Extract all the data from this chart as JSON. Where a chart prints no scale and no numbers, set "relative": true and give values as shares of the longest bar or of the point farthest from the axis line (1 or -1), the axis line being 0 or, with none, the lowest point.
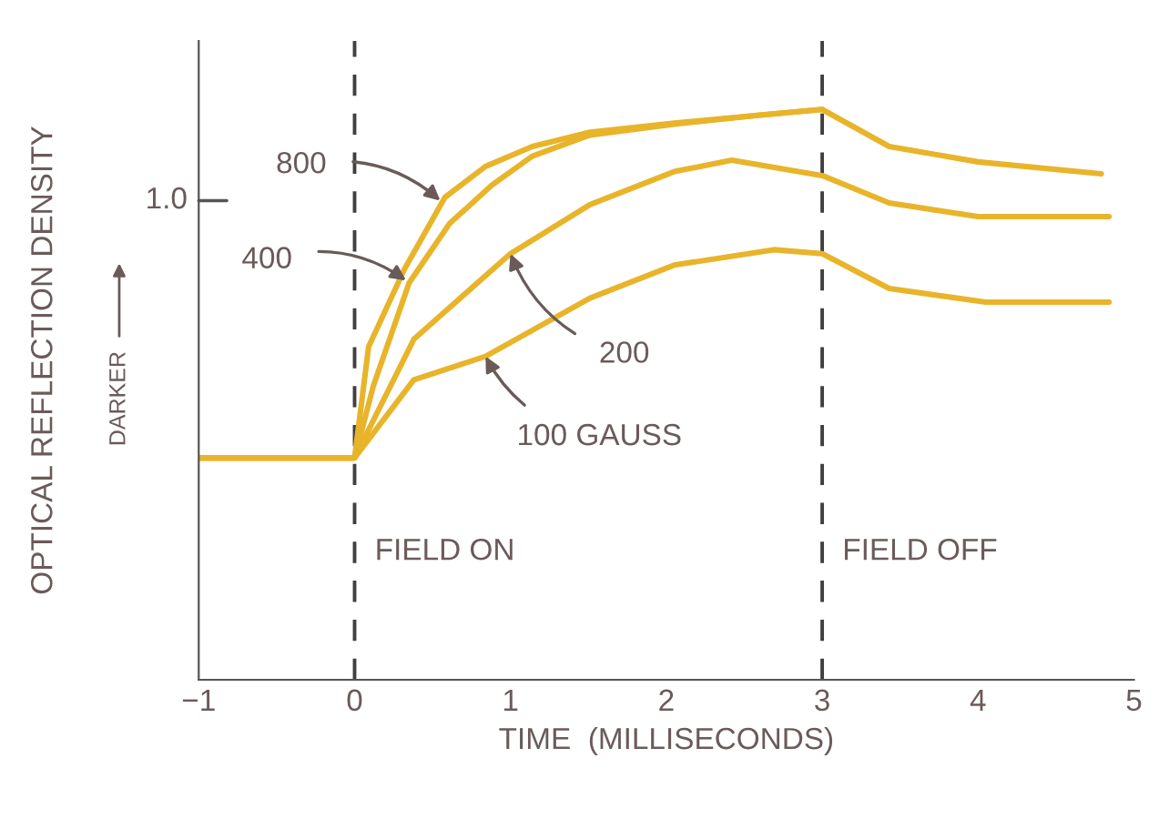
{
  "chart_data": {
    "type": "line",
    "relative": true,
    "xlabel": "TIME  (MILLISECONDS)",
    "ylabel": "OPTICAL REFLECTION DENSITY",
    "xlim": [
      -1,
      5
    ],
    "xticks": [
      {
        "value": -1,
        "label": "−1"
      },
      0,
      1,
      2,
      3,
      4,
      5
    ],
    "grid": false,
    "marker": "none",
    "line_style": "solid",
    "series": [
      {
        "color": "#e8b42a",
        "x": [
          -1,
          0,
          0.09,
          0.32,
          0.58,
          0.84,
          1.14,
          1.51,
          2.05,
          2.6,
          3.0,
          3.43,
          4.0,
          4.79
        ],
        "values": [
          0.389,
          0.389,
          0.584,
          0.72,
          0.846,
          0.9,
          0.935,
          0.96,
          0.976,
          0.99,
          1.0,
          0.935,
          0.908,
          0.887
        ]
      },
      {
        "color": "#e8b42a",
        "x": [
          -1,
          0,
          0.12,
          0.35,
          0.61,
          0.88,
          1.14,
          1.51,
          2.05,
          2.6,
          3.0
        ],
        "values": [
          0.389,
          0.389,
          0.515,
          0.696,
          0.8,
          0.867,
          0.918,
          0.955,
          0.974,
          0.99,
          1.0
        ]
      },
      {
        "color": "#e8b42a",
        "x": [
          -1,
          0,
          0.38,
          1.0,
          1.51,
          2.05,
          2.42,
          3.0,
          3.43,
          4.0,
          4.84
        ],
        "values": [
          0.389,
          0.389,
          0.597,
          0.747,
          0.833,
          0.891,
          0.911,
          0.884,
          0.836,
          0.812,
          0.812
        ]
      },
      {
        "color": "#e8b42a",
        "x": [
          -1,
          0,
          0.38,
          0.84,
          1.51,
          2.05,
          2.69,
          3.0,
          3.43,
          4.05,
          4.84
        ],
        "values": [
          0.389,
          0.389,
          0.526,
          0.567,
          0.669,
          0.727,
          0.754,
          0.747,
          0.686,
          0.662,
          0.662
        ]
      }
    ],
    "ref_lines": [
      {
        "axis": "x",
        "value": 0,
        "line_style": "dashed",
        "color": "#404040",
        "label": "FIELD ON"
      },
      {
        "axis": "x",
        "value": 3,
        "line_style": "dashed",
        "color": "#404040",
        "label": "FIELD OFF"
      }
    ],
    "annotations": [
      {
        "text": "800",
        "x": 0.55,
        "y": 0.84
      },
      {
        "text": "400",
        "x": 0.33,
        "y": 0.7
      },
      {
        "text": "200",
        "x": 1.0,
        "y": 0.747
      },
      {
        "text": "100 GAUSS",
        "x": 0.84,
        "y": 0.567
      },
      "1.0",
      "DARKER"
    ]
  }
}
